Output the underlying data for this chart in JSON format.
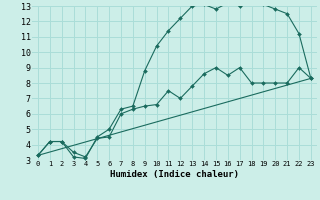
{
  "title": "",
  "xlabel": "Humidex (Indice chaleur)",
  "bg_color": "#cceee8",
  "grid_color": "#aaddd8",
  "line_color": "#1a6b5e",
  "xlim": [
    -0.5,
    23.5
  ],
  "ylim": [
    3,
    13
  ],
  "xticks": [
    0,
    1,
    2,
    3,
    4,
    5,
    6,
    7,
    8,
    9,
    10,
    11,
    12,
    13,
    14,
    15,
    16,
    17,
    18,
    19,
    20,
    21,
    22,
    23
  ],
  "yticks": [
    3,
    4,
    5,
    6,
    7,
    8,
    9,
    10,
    11,
    12,
    13
  ],
  "series1_x": [
    0,
    1,
    2,
    3,
    4,
    5,
    6,
    7,
    8,
    9,
    10,
    11,
    12,
    13,
    14,
    15,
    16,
    17,
    18,
    19,
    20,
    21,
    22,
    23
  ],
  "series1_y": [
    3.3,
    4.2,
    4.2,
    3.2,
    3.1,
    4.5,
    5.0,
    6.3,
    6.5,
    8.8,
    10.4,
    11.4,
    12.2,
    13.0,
    13.1,
    12.8,
    13.2,
    13.0,
    13.3,
    13.1,
    12.8,
    12.5,
    11.2,
    8.3
  ],
  "series2_x": [
    0,
    1,
    2,
    3,
    4,
    5,
    6,
    7,
    8,
    9,
    10,
    11,
    12,
    13,
    14,
    15,
    16,
    17,
    18,
    19,
    20,
    21,
    22,
    23
  ],
  "series2_y": [
    3.3,
    4.2,
    4.2,
    3.5,
    3.2,
    4.4,
    4.5,
    6.0,
    6.3,
    6.5,
    6.6,
    7.5,
    7.0,
    7.8,
    8.6,
    9.0,
    8.5,
    9.0,
    8.0,
    8.0,
    8.0,
    8.0,
    9.0,
    8.3
  ],
  "series3_x": [
    0,
    23
  ],
  "series3_y": [
    3.3,
    8.3
  ]
}
